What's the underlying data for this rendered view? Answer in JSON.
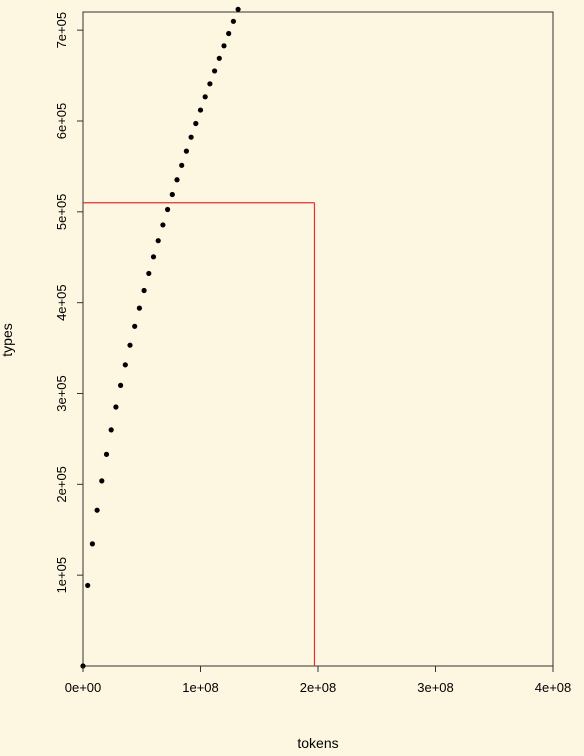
{
  "chart_data": {
    "type": "scatter",
    "xlabel": "tokens",
    "ylabel": "types",
    "xlim": [
      0,
      400000000
    ],
    "ylim": [
      0,
      720000
    ],
    "x_ticks": [
      {
        "value": 0,
        "label": "0e+00"
      },
      {
        "value": 100000000,
        "label": "1e+08"
      },
      {
        "value": 200000000,
        "label": "2e+08"
      },
      {
        "value": 300000000,
        "label": "3e+08"
      },
      {
        "value": 400000000,
        "label": "4e+08"
      }
    ],
    "y_ticks": [
      {
        "value": 100000,
        "label": "1e+05"
      },
      {
        "value": 200000,
        "label": "2e+05"
      },
      {
        "value": 300000,
        "label": "3e+05"
      },
      {
        "value": 400000,
        "label": "4e+05"
      },
      {
        "value": 500000,
        "label": "5e+05"
      },
      {
        "value": 600000,
        "label": "6e+05"
      },
      {
        "value": 700000,
        "label": "7e+05"
      }
    ],
    "grid": false,
    "series": [
      {
        "marker_color": "#000000",
        "x_start": 0,
        "x_step": 4000000,
        "count": 101,
        "heaps_law": {
          "K": 9.7,
          "beta": 0.6
        },
        "note_model": "points follow types ≈ K · tokens^beta"
      }
    ],
    "reference_point": {
      "x": 197000000,
      "y": 510000
    },
    "reference_color": "#e03030"
  }
}
